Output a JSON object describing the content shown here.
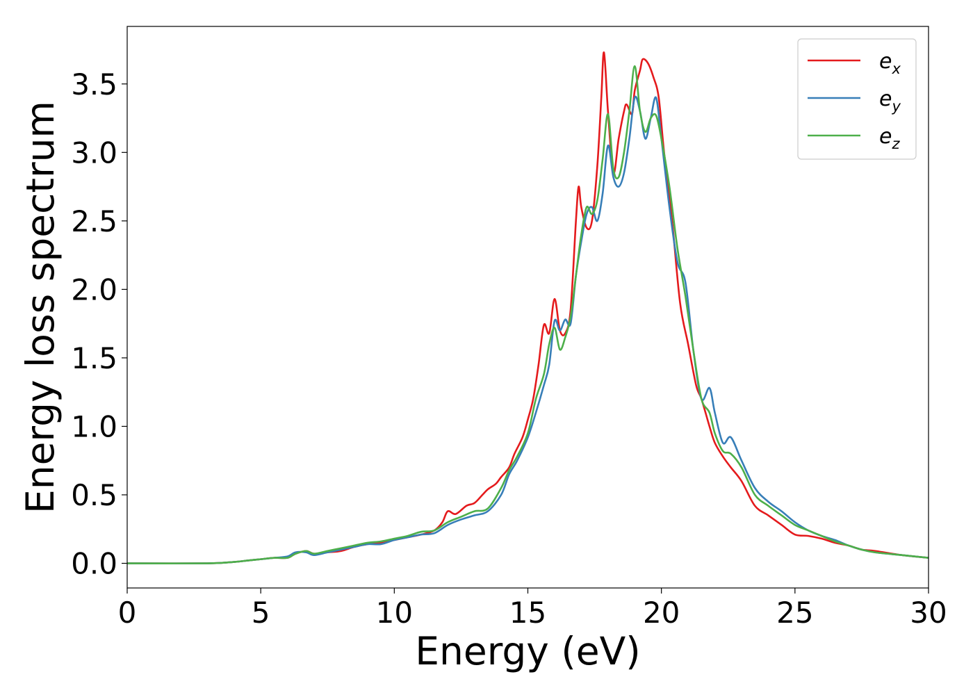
{
  "chart_data": {
    "type": "line",
    "title": "",
    "xlabel": "Energy (eV)",
    "ylabel": "Energy loss spectrum",
    "xlim": [
      0,
      30
    ],
    "ylim": [
      -0.18,
      3.92
    ],
    "xticks": [
      0,
      5,
      10,
      15,
      20,
      25,
      30
    ],
    "xtick_labels": [
      "0",
      "5",
      "10",
      "15",
      "20",
      "25",
      "30"
    ],
    "yticks": [
      0.0,
      0.5,
      1.0,
      1.5,
      2.0,
      2.5,
      3.0,
      3.5
    ],
    "ytick_labels": [
      "0.0",
      "0.5",
      "1.0",
      "1.5",
      "2.0",
      "2.5",
      "3.0",
      "3.5"
    ],
    "grid": false,
    "legend_position": "top-right",
    "series": [
      {
        "name": "e_x",
        "label_base": "e",
        "label_sub": "x",
        "color": "#e41a1c",
        "x": [
          0,
          3,
          4,
          4.5,
          5,
          5.5,
          6,
          6.3,
          6.7,
          7,
          7.5,
          8,
          8.5,
          9,
          9.5,
          10,
          10.5,
          11,
          11.5,
          11.8,
          12,
          12.3,
          12.7,
          13,
          13.3,
          13.5,
          13.8,
          14,
          14.3,
          14.5,
          14.8,
          15,
          15.2,
          15.4,
          15.6,
          15.8,
          16,
          16.2,
          16.4,
          16.6,
          16.8,
          16.9,
          17,
          17.2,
          17.4,
          17.6,
          17.75,
          17.85,
          18,
          18.2,
          18.4,
          18.6,
          18.7,
          18.9,
          19,
          19.2,
          19.3,
          19.5,
          19.7,
          19.9,
          20.1,
          20.4,
          20.7,
          21,
          21.3,
          21.5,
          21.8,
          22,
          22.3,
          22.6,
          23,
          23.5,
          24,
          24.5,
          25,
          25.5,
          26,
          26.5,
          27,
          27.5,
          28,
          29,
          30
        ],
        "y": [
          0.0,
          0.0,
          0.01,
          0.02,
          0.03,
          0.04,
          0.04,
          0.07,
          0.09,
          0.07,
          0.08,
          0.09,
          0.12,
          0.14,
          0.15,
          0.17,
          0.19,
          0.21,
          0.24,
          0.3,
          0.38,
          0.36,
          0.42,
          0.44,
          0.5,
          0.54,
          0.58,
          0.63,
          0.7,
          0.8,
          0.92,
          1.05,
          1.2,
          1.45,
          1.74,
          1.68,
          1.93,
          1.7,
          1.68,
          1.85,
          2.5,
          2.75,
          2.6,
          2.45,
          2.5,
          2.9,
          3.4,
          3.73,
          3.3,
          2.85,
          3.1,
          3.3,
          3.35,
          3.28,
          3.45,
          3.6,
          3.68,
          3.65,
          3.55,
          3.4,
          3.0,
          2.5,
          1.9,
          1.6,
          1.3,
          1.2,
          1.0,
          0.88,
          0.78,
          0.7,
          0.6,
          0.42,
          0.35,
          0.28,
          0.21,
          0.2,
          0.18,
          0.15,
          0.13,
          0.1,
          0.09,
          0.06,
          0.04
        ]
      },
      {
        "name": "e_y",
        "label_base": "e",
        "label_sub": "y",
        "color": "#377eb8",
        "x": [
          0,
          3,
          4,
          4.5,
          5,
          5.5,
          6,
          6.3,
          6.7,
          7,
          7.5,
          8,
          8.5,
          9,
          9.5,
          10,
          10.5,
          11,
          11.5,
          12,
          12.5,
          13,
          13.5,
          14,
          14.3,
          14.6,
          15,
          15.3,
          15.6,
          15.8,
          16,
          16.2,
          16.4,
          16.6,
          16.8,
          17,
          17.2,
          17.4,
          17.6,
          17.8,
          18,
          18.2,
          18.4,
          18.6,
          18.8,
          19,
          19.2,
          19.4,
          19.6,
          19.8,
          20,
          20.3,
          20.6,
          20.9,
          21.2,
          21.5,
          21.8,
          22,
          22.3,
          22.6,
          23,
          23.5,
          24,
          24.5,
          25,
          25.5,
          26,
          26.5,
          27,
          27.5,
          28,
          29,
          30
        ],
        "y": [
          0.0,
          0.0,
          0.01,
          0.02,
          0.03,
          0.04,
          0.05,
          0.08,
          0.08,
          0.06,
          0.08,
          0.1,
          0.12,
          0.14,
          0.14,
          0.17,
          0.19,
          0.21,
          0.22,
          0.28,
          0.32,
          0.35,
          0.38,
          0.5,
          0.65,
          0.75,
          0.92,
          1.1,
          1.3,
          1.45,
          1.77,
          1.7,
          1.78,
          1.75,
          2.1,
          2.35,
          2.55,
          2.6,
          2.5,
          2.7,
          3.05,
          2.82,
          2.75,
          2.85,
          3.1,
          3.4,
          3.3,
          3.1,
          3.25,
          3.4,
          3.1,
          2.6,
          2.2,
          2.05,
          1.55,
          1.2,
          1.28,
          1.1,
          0.88,
          0.92,
          0.75,
          0.55,
          0.45,
          0.38,
          0.3,
          0.24,
          0.2,
          0.17,
          0.13,
          0.1,
          0.08,
          0.06,
          0.04
        ]
      },
      {
        "name": "e_z",
        "label_base": "e",
        "label_sub": "z",
        "color": "#4daf4a",
        "x": [
          0,
          3,
          4,
          4.5,
          5,
          5.5,
          6,
          6.3,
          6.7,
          7,
          7.5,
          8,
          8.5,
          9,
          9.5,
          10,
          10.5,
          11,
          11.5,
          12,
          12.5,
          13,
          13.5,
          14,
          14.3,
          14.6,
          15,
          15.3,
          15.6,
          15.8,
          16,
          16.2,
          16.4,
          16.6,
          16.8,
          17,
          17.2,
          17.4,
          17.6,
          17.8,
          18,
          18.2,
          18.4,
          18.6,
          18.8,
          19,
          19.2,
          19.4,
          19.6,
          19.8,
          20,
          20.3,
          20.6,
          20.9,
          21.2,
          21.5,
          21.8,
          22,
          22.3,
          22.6,
          23,
          23.5,
          24,
          24.5,
          25,
          25.5,
          26,
          26.5,
          27,
          27.5,
          28,
          29,
          30
        ],
        "y": [
          0.0,
          0.0,
          0.01,
          0.02,
          0.03,
          0.04,
          0.04,
          0.07,
          0.09,
          0.07,
          0.09,
          0.11,
          0.13,
          0.15,
          0.16,
          0.18,
          0.2,
          0.23,
          0.24,
          0.3,
          0.34,
          0.38,
          0.4,
          0.55,
          0.68,
          0.78,
          0.95,
          1.2,
          1.38,
          1.6,
          1.72,
          1.56,
          1.65,
          1.8,
          2.1,
          2.4,
          2.6,
          2.55,
          2.65,
          2.95,
          3.28,
          2.88,
          2.82,
          3.0,
          3.3,
          3.63,
          3.3,
          3.15,
          3.25,
          3.27,
          3.1,
          2.75,
          2.3,
          1.95,
          1.55,
          1.2,
          1.1,
          0.95,
          0.82,
          0.8,
          0.7,
          0.5,
          0.42,
          0.35,
          0.28,
          0.24,
          0.2,
          0.16,
          0.13,
          0.1,
          0.08,
          0.06,
          0.04
        ]
      }
    ]
  }
}
